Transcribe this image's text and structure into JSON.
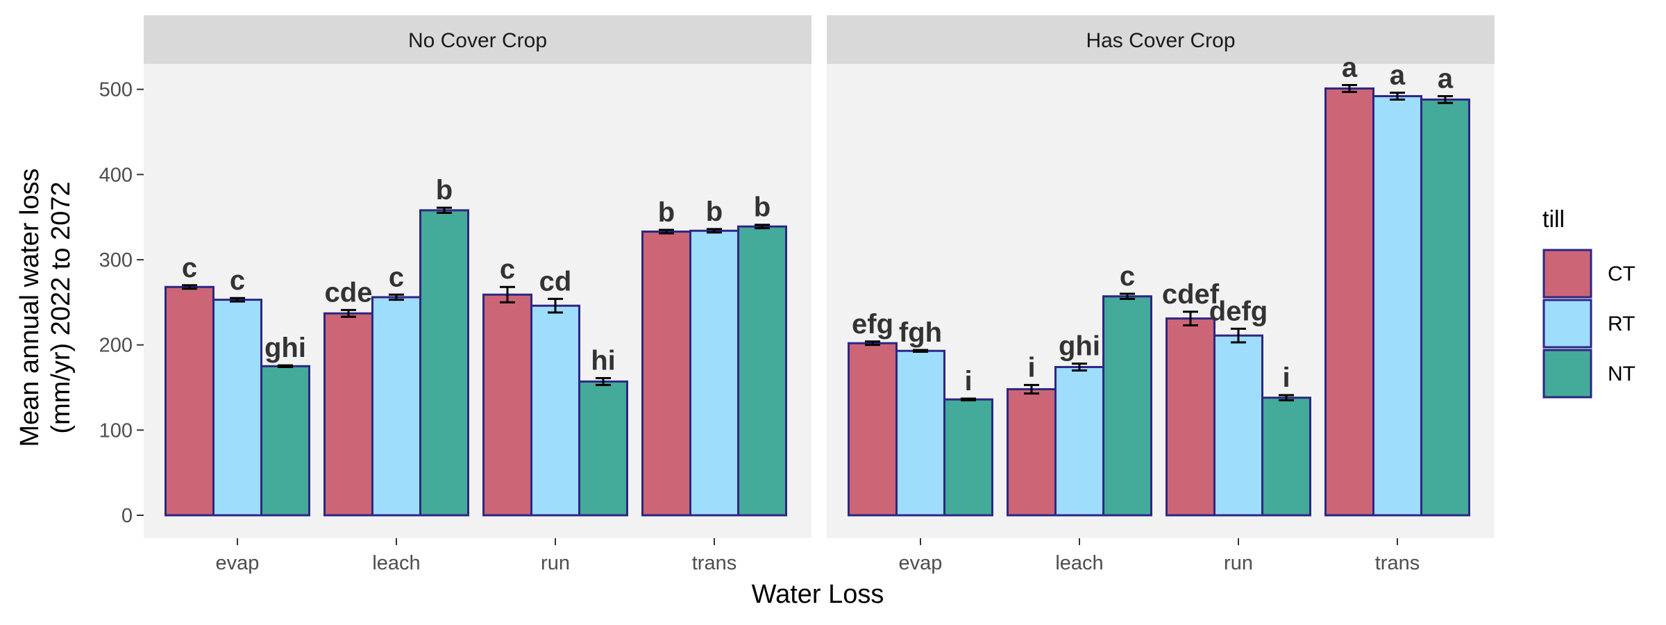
{
  "chart_data": {
    "type": "bar",
    "ylabel_lines": [
      "Mean annual water loss",
      "(mm/yr) 2022 to 2072"
    ],
    "xlabel": "Water Loss",
    "categories": [
      "evap",
      "leach",
      "run",
      "trans"
    ],
    "yticks": [
      0,
      100,
      200,
      300,
      400,
      500
    ],
    "ylim": [
      0,
      560
    ],
    "legend": {
      "title": "till",
      "placement": "right",
      "entries": [
        {
          "name": "CT",
          "color": "#CC6677"
        },
        {
          "name": "RT",
          "color": "#9FDDFD"
        },
        {
          "name": "NT",
          "color": "#44AA99"
        }
      ]
    },
    "bar_outline_color": "#2D2683",
    "panel_background": "#F2F2F2",
    "strip_background": "#D9D9D9",
    "panels": [
      {
        "title": "No Cover Crop",
        "series": [
          {
            "name": "CT",
            "values": [
              268,
              237,
              259,
              333
            ],
            "errors": [
              2,
              4,
              9,
              2
            ],
            "labels": [
              "c",
              "cde",
              "c",
              "b"
            ]
          },
          {
            "name": "RT",
            "values": [
              253,
              256,
              246,
              334
            ],
            "errors": [
              2,
              3,
              8,
              2
            ],
            "labels": [
              "c",
              "c",
              "cd",
              "b"
            ]
          },
          {
            "name": "NT",
            "values": [
              175,
              358,
              157,
              339
            ],
            "errors": [
              1,
              3,
              4,
              2
            ],
            "labels": [
              "ghi",
              "b",
              "hi",
              "b"
            ]
          }
        ]
      },
      {
        "title": "Has Cover Crop",
        "series": [
          {
            "name": "CT",
            "values": [
              202,
              148,
              231,
              501
            ],
            "errors": [
              2,
              5,
              8,
              4
            ],
            "labels": [
              "efg",
              "i",
              "cdef",
              "a"
            ]
          },
          {
            "name": "RT",
            "values": [
              193,
              174,
              211,
              492
            ],
            "errors": [
              1,
              4,
              8,
              4
            ],
            "labels": [
              "fgh",
              "ghi",
              "defg",
              "a"
            ]
          },
          {
            "name": "NT",
            "values": [
              136,
              257,
              138,
              488
            ],
            "errors": [
              1,
              3,
              3,
              4
            ],
            "labels": [
              "i",
              "c",
              "i",
              "a"
            ]
          }
        ]
      }
    ]
  }
}
